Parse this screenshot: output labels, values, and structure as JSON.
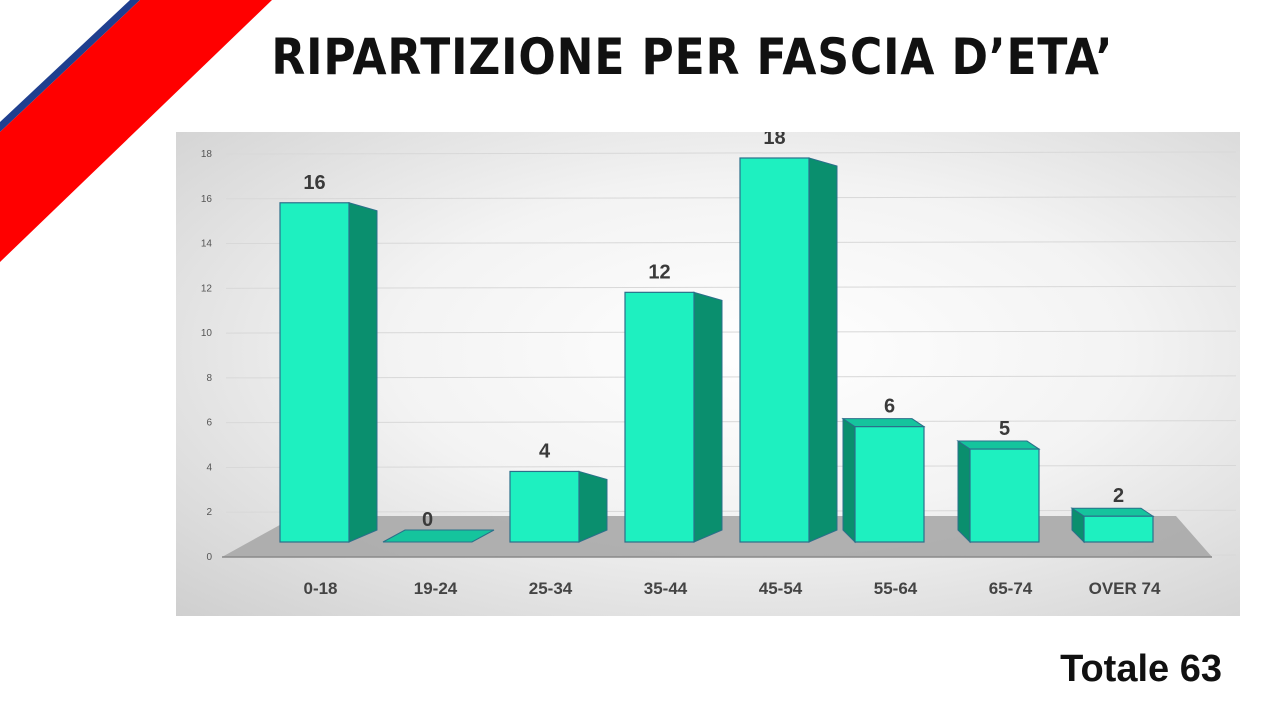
{
  "title": "RIPARTIZIONE PER FASCIA D’ETA’",
  "total_label": "Totale 63",
  "colors": {
    "bar_front": "#1ef0c0",
    "bar_side": "#0a8f6e",
    "bar_top": "#15c49d",
    "bar_edge": "#2b6f8a",
    "stripe_red": "#ff0000",
    "stripe_blue": "#1f3f8f",
    "floor": "#a9a9a9",
    "grid": "#d8d8d8"
  },
  "chart_data": {
    "type": "bar",
    "title": "",
    "xlabel": "",
    "ylabel": "",
    "categories": [
      "0-18",
      "19-24",
      "25-34",
      "35-44",
      "45-54",
      "55-64",
      "65-74",
      "OVER 74"
    ],
    "values": [
      16,
      0,
      4,
      12,
      18,
      6,
      5,
      2
    ],
    "data_labels": [
      "16",
      "0",
      "4",
      "12",
      "18",
      "6",
      "5",
      "2"
    ],
    "ylim": [
      0,
      18
    ],
    "yticks": [
      "0",
      "2",
      "4",
      "6",
      "8",
      "10",
      "12",
      "14",
      "16",
      "18"
    ],
    "grid": true,
    "style": "3d-perspective"
  }
}
